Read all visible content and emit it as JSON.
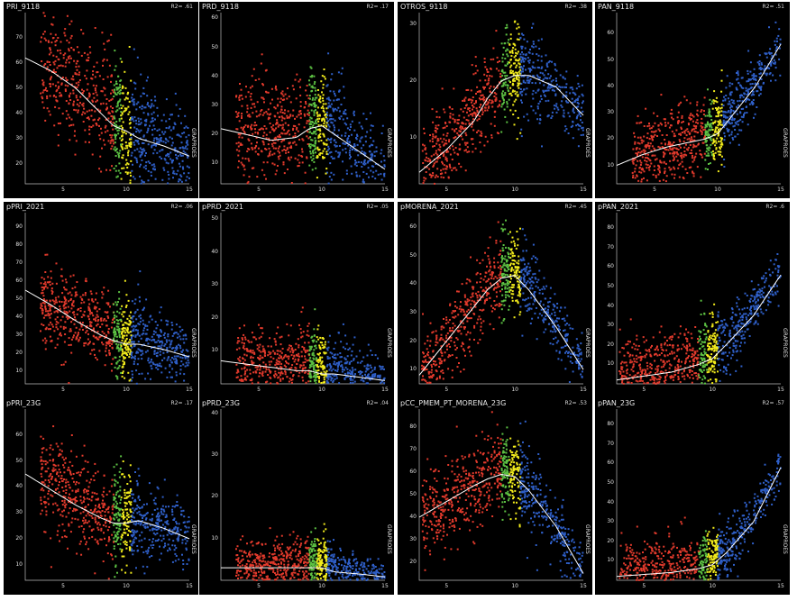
{
  "figure": {
    "background": "#000000",
    "colors": {
      "red": "#e23a2c",
      "green": "#5cc043",
      "yellow": "#f2ec1c",
      "blue": "#2f5fc8",
      "fit": "#ffffff"
    }
  },
  "chart_data": [
    {
      "type": "scatter",
      "title": "PRI_9118",
      "r2": "R2= .61",
      "xlabel": "GRAPROES",
      "xlim": [
        2,
        15
      ],
      "ylim": [
        12,
        80
      ],
      "xticks": [
        5,
        10,
        15
      ],
      "yticks": [
        20,
        30,
        40,
        50,
        60,
        70
      ],
      "fit": {
        "x": [
          2,
          4,
          6,
          8,
          9,
          10,
          11,
          13,
          15
        ],
        "y": [
          62,
          57,
          50,
          40,
          35,
          33,
          30,
          27,
          23
        ]
      },
      "cloud": [
        {
          "x": 3,
          "y": 58
        },
        {
          "x": 5,
          "y": 55
        },
        {
          "x": 7,
          "y": 48
        },
        {
          "x": 9,
          "y": 38
        },
        {
          "x": 10,
          "y": 34
        },
        {
          "x": 12,
          "y": 30
        },
        {
          "x": 15,
          "y": 24
        }
      ],
      "spread": 12
    },
    {
      "type": "scatter",
      "title": "PRD_9118",
      "r2": "R2= .17",
      "xlabel": "GRAPROES",
      "xlim": [
        2,
        15
      ],
      "ylim": [
        3,
        62
      ],
      "xticks": [
        5,
        10,
        15
      ],
      "yticks": [
        10,
        20,
        30,
        40,
        50,
        60
      ],
      "fit": {
        "x": [
          2,
          4,
          6,
          8,
          9,
          10,
          11,
          13,
          15
        ],
        "y": [
          22,
          20,
          18,
          19,
          22,
          23,
          20,
          14,
          8
        ]
      },
      "cloud": [
        {
          "x": 3,
          "y": 22
        },
        {
          "x": 6,
          "y": 20
        },
        {
          "x": 8,
          "y": 22
        },
        {
          "x": 9,
          "y": 25
        },
        {
          "x": 10,
          "y": 24
        },
        {
          "x": 12,
          "y": 18
        },
        {
          "x": 15,
          "y": 9
        }
      ],
      "spread": 9
    },
    {
      "type": "scatter",
      "title": "OTROS_9118",
      "r2": "R2= .38",
      "xlabel": "GRAPROES",
      "xlim": [
        3,
        15
      ],
      "ylim": [
        2,
        32
      ],
      "xticks": [
        5,
        10,
        15
      ],
      "yticks": [
        10,
        20,
        30
      ],
      "fit": {
        "x": [
          3,
          5,
          7,
          8,
          9,
          10,
          11,
          13,
          15
        ],
        "y": [
          4,
          8,
          13,
          17,
          20,
          21,
          21,
          19,
          14
        ]
      },
      "cloud": [
        {
          "x": 4,
          "y": 6
        },
        {
          "x": 6,
          "y": 11
        },
        {
          "x": 8,
          "y": 17
        },
        {
          "x": 9,
          "y": 20
        },
        {
          "x": 10,
          "y": 22
        },
        {
          "x": 12,
          "y": 21
        },
        {
          "x": 15,
          "y": 14
        }
      ],
      "spread": 4
    },
    {
      "type": "scatter",
      "title": "PAN_9118",
      "r2": "R2= .51",
      "xlabel": "GRAPROES",
      "xlim": [
        2,
        15
      ],
      "ylim": [
        3,
        68
      ],
      "xticks": [
        5,
        10,
        15
      ],
      "yticks": [
        10,
        20,
        30,
        40,
        50,
        60
      ],
      "fit": {
        "x": [
          2,
          4,
          6,
          8,
          9,
          10,
          11,
          13,
          15
        ],
        "y": [
          10,
          14,
          17,
          19,
          20,
          22,
          28,
          40,
          56
        ]
      },
      "cloud": [
        {
          "x": 3,
          "y": 12
        },
        {
          "x": 6,
          "y": 17
        },
        {
          "x": 8,
          "y": 20
        },
        {
          "x": 9,
          "y": 21
        },
        {
          "x": 10,
          "y": 24
        },
        {
          "x": 12,
          "y": 34
        },
        {
          "x": 15,
          "y": 56
        }
      ],
      "spread": 7
    },
    {
      "type": "scatter",
      "title": "pPRI_2021",
      "r2": "R2= .06",
      "xlabel": "GRAPROES",
      "xlim": [
        2,
        15
      ],
      "ylim": [
        3,
        98
      ],
      "xticks": [
        5,
        10,
        15
      ],
      "yticks": [
        10,
        20,
        30,
        40,
        50,
        60,
        70,
        80,
        90
      ],
      "fit": {
        "x": [
          2,
          4,
          6,
          8,
          9,
          10,
          11,
          13,
          15
        ],
        "y": [
          55,
          47,
          38,
          30,
          27,
          25,
          25,
          22,
          18
        ]
      },
      "cloud": [
        {
          "x": 3,
          "y": 50
        },
        {
          "x": 5,
          "y": 45
        },
        {
          "x": 7,
          "y": 38
        },
        {
          "x": 9,
          "y": 30
        },
        {
          "x": 10,
          "y": 28
        },
        {
          "x": 12,
          "y": 25
        },
        {
          "x": 15,
          "y": 18
        }
      ],
      "spread": 11
    },
    {
      "type": "scatter",
      "title": "pPRD_2021",
      "r2": "R2= .05",
      "xlabel": "GRAPROES",
      "xlim": [
        2,
        15
      ],
      "ylim": [
        0,
        52
      ],
      "xticks": [
        5,
        10,
        15
      ],
      "yticks": [
        10,
        20,
        30,
        40,
        50
      ],
      "fit": {
        "x": [
          2,
          4,
          6,
          8,
          9,
          10,
          11,
          13,
          15
        ],
        "y": [
          7,
          6,
          5,
          4,
          4,
          3,
          3,
          2,
          1
        ]
      },
      "cloud": [
        {
          "x": 3,
          "y": 6
        },
        {
          "x": 6,
          "y": 6
        },
        {
          "x": 8,
          "y": 6
        },
        {
          "x": 9,
          "y": 7
        },
        {
          "x": 10,
          "y": 5
        },
        {
          "x": 12,
          "y": 3
        },
        {
          "x": 15,
          "y": 1
        }
      ],
      "spread": 5
    },
    {
      "type": "scatter",
      "title": "pMORENA_2021",
      "r2": "R2= .45",
      "xlabel": "GRAPROES",
      "xlim": [
        3,
        15
      ],
      "ylim": [
        5,
        65
      ],
      "xticks": [
        5,
        10,
        15
      ],
      "yticks": [
        10,
        20,
        30,
        40,
        50,
        60
      ],
      "fit": {
        "x": [
          3,
          5,
          7,
          8,
          9,
          10,
          11,
          13,
          15
        ],
        "y": [
          8,
          20,
          32,
          38,
          42,
          43,
          38,
          25,
          10
        ]
      },
      "cloud": [
        {
          "x": 4,
          "y": 12
        },
        {
          "x": 6,
          "y": 26
        },
        {
          "x": 8,
          "y": 38
        },
        {
          "x": 9,
          "y": 42
        },
        {
          "x": 10,
          "y": 44
        },
        {
          "x": 12,
          "y": 34
        },
        {
          "x": 15,
          "y": 10
        }
      ],
      "spread": 7
    },
    {
      "type": "scatter",
      "title": "pPAN_2021",
      "r2": "R2= .6",
      "xlabel": "GRAPROES",
      "xlim": [
        3,
        15
      ],
      "ylim": [
        0,
        88
      ],
      "xticks": [
        5,
        10,
        15
      ],
      "yticks": [
        10,
        20,
        30,
        40,
        50,
        60,
        70,
        80
      ],
      "fit": {
        "x": [
          3,
          5,
          7,
          8,
          9,
          10,
          11,
          13,
          15
        ],
        "y": [
          2,
          4,
          6,
          8,
          10,
          13,
          20,
          35,
          56
        ]
      },
      "cloud": [
        {
          "x": 4,
          "y": 4
        },
        {
          "x": 6,
          "y": 8
        },
        {
          "x": 8,
          "y": 12
        },
        {
          "x": 9,
          "y": 14
        },
        {
          "x": 10,
          "y": 16
        },
        {
          "x": 12,
          "y": 28
        },
        {
          "x": 15,
          "y": 58
        }
      ],
      "spread": 9
    },
    {
      "type": "scatter",
      "title": "pPRI_23G",
      "r2": "R2= .17",
      "xlabel": "GRAPROES",
      "xlim": [
        2,
        15
      ],
      "ylim": [
        4,
        70
      ],
      "xticks": [
        5,
        10,
        15
      ],
      "yticks": [
        10,
        20,
        30,
        40,
        50,
        60
      ],
      "fit": {
        "x": [
          2,
          4,
          6,
          8,
          9,
          10,
          11,
          13,
          15
        ],
        "y": [
          45,
          39,
          33,
          28,
          26,
          26,
          27,
          24,
          20
        ]
      },
      "cloud": [
        {
          "x": 3,
          "y": 43
        },
        {
          "x": 5,
          "y": 38
        },
        {
          "x": 7,
          "y": 32
        },
        {
          "x": 9,
          "y": 28
        },
        {
          "x": 10,
          "y": 27
        },
        {
          "x": 12,
          "y": 26
        },
        {
          "x": 15,
          "y": 20
        }
      ],
      "spread": 9
    },
    {
      "type": "scatter",
      "title": "pPRD_23G",
      "r2": "R2= .04",
      "xlabel": "GRAPROES",
      "xlim": [
        2,
        15
      ],
      "ylim": [
        0,
        41
      ],
      "xticks": [
        5,
        10,
        15
      ],
      "yticks": [
        10,
        20,
        30,
        40
      ],
      "fit": {
        "x": [
          2,
          4,
          6,
          8,
          9,
          10,
          11,
          13,
          15
        ],
        "y": [
          3,
          3,
          3,
          3,
          3,
          3,
          2,
          1.5,
          0.8
        ]
      },
      "cloud": [
        {
          "x": 3,
          "y": 3
        },
        {
          "x": 6,
          "y": 3
        },
        {
          "x": 8,
          "y": 4
        },
        {
          "x": 9,
          "y": 5
        },
        {
          "x": 10,
          "y": 4
        },
        {
          "x": 12,
          "y": 2
        },
        {
          "x": 15,
          "y": 1
        }
      ],
      "spread": 3
    },
    {
      "type": "scatter",
      "title": "pCC_PMEM_PT_MORENA_23G",
      "r2": "R2= .53",
      "xlabel": "GRAPROES",
      "xlim": [
        3,
        15
      ],
      "ylim": [
        12,
        88
      ],
      "xticks": [
        5,
        10,
        15
      ],
      "yticks": [
        20,
        30,
        40,
        50,
        60,
        70,
        80
      ],
      "fit": {
        "x": [
          3,
          5,
          7,
          8,
          9,
          10,
          11,
          13,
          15
        ],
        "y": [
          40,
          47,
          54,
          57,
          59,
          58,
          52,
          36,
          15
        ]
      },
      "cloud": [
        {
          "x": 4,
          "y": 42
        },
        {
          "x": 6,
          "y": 50
        },
        {
          "x": 8,
          "y": 57
        },
        {
          "x": 9,
          "y": 60
        },
        {
          "x": 10,
          "y": 60
        },
        {
          "x": 12,
          "y": 45
        },
        {
          "x": 15,
          "y": 16
        }
      ],
      "spread": 9
    },
    {
      "type": "scatter",
      "title": "pPAN_23G",
      "r2": "R2= .57",
      "xlabel": "GRAPROES",
      "xlim": [
        3,
        15
      ],
      "ylim": [
        0,
        88
      ],
      "xticks": [
        5,
        10,
        15
      ],
      "yticks": [
        10,
        20,
        30,
        40,
        50,
        60,
        70,
        80
      ],
      "fit": {
        "x": [
          3,
          5,
          7,
          8,
          9,
          10,
          11,
          13,
          15
        ],
        "y": [
          2,
          3,
          4,
          5,
          6,
          8,
          14,
          30,
          58
        ]
      },
      "cloud": [
        {
          "x": 4,
          "y": 3
        },
        {
          "x": 6,
          "y": 5
        },
        {
          "x": 8,
          "y": 7
        },
        {
          "x": 9,
          "y": 8
        },
        {
          "x": 10,
          "y": 10
        },
        {
          "x": 12,
          "y": 22
        },
        {
          "x": 15,
          "y": 58
        }
      ],
      "spread": 8
    }
  ]
}
